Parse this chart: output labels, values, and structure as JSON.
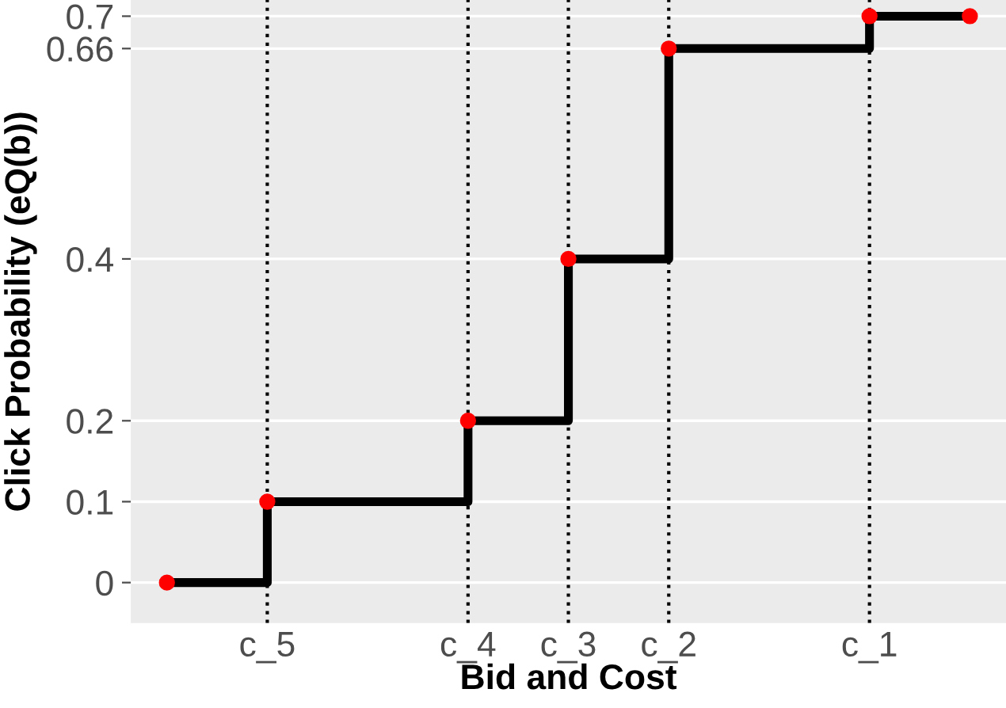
{
  "chart_data": {
    "type": "step",
    "xlabel": "Bid and Cost",
    "ylabel": "Click Probability (eQ(b))",
    "categories": [
      null,
      "c_5",
      null,
      "c_4",
      "c_3",
      "c_2",
      null,
      "c_1",
      null
    ],
    "series": [
      {
        "color": "#000000",
        "values": [
          0,
          0.1,
          0.1,
          0.2,
          0.4,
          0.66,
          0.66,
          0.7,
          0.7
        ]
      },
      {
        "type": "scatter",
        "color": "#ff0000",
        "values": [
          0,
          0.1,
          null,
          0.2,
          0.4,
          0.66,
          null,
          0.7,
          0.7
        ],
        "marker": "circle"
      }
    ],
    "ylim": [
      -0.05,
      0.72
    ],
    "yticks": [
      0,
      0.1,
      0.2,
      0.4,
      0.66,
      0.7
    ],
    "ref_lines": [
      {
        "axis": "x",
        "value": "c_5",
        "line_style": "dotted",
        "color": "#000000"
      },
      {
        "axis": "x",
        "value": "c_4",
        "line_style": "dotted",
        "color": "#000000"
      },
      {
        "axis": "x",
        "value": "c_3",
        "line_style": "dotted",
        "color": "#000000"
      },
      {
        "axis": "x",
        "value": "c_2",
        "line_style": "dotted",
        "color": "#000000"
      },
      {
        "axis": "x",
        "value": "c_1",
        "line_style": "dotted",
        "color": "#000000"
      }
    ],
    "grid": "y"
  }
}
